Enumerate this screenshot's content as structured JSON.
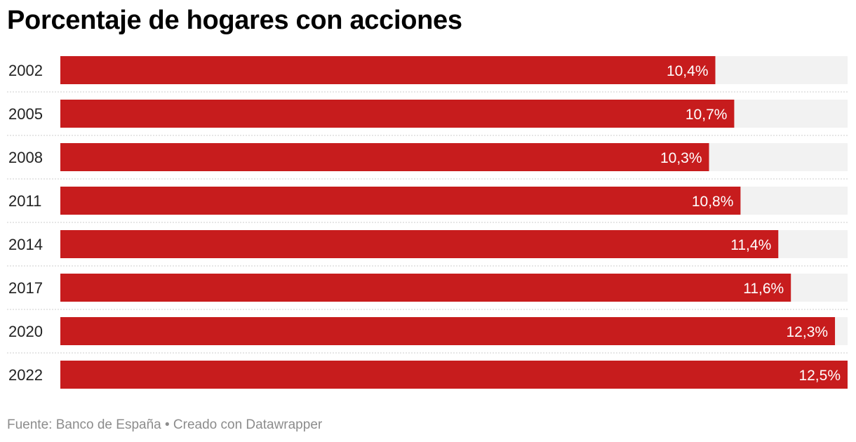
{
  "chart_data": {
    "type": "bar",
    "orientation": "horizontal",
    "title": "Porcentaje de hogares con acciones",
    "categories": [
      "2002",
      "2005",
      "2008",
      "2011",
      "2014",
      "2017",
      "2020",
      "2022"
    ],
    "values": [
      10.4,
      10.7,
      10.3,
      10.8,
      11.4,
      11.6,
      12.3,
      12.5
    ],
    "value_labels": [
      "10,4%",
      "10,7%",
      "10,3%",
      "10,8%",
      "11,4%",
      "11,6%",
      "12,3%",
      "12,5%"
    ],
    "xlim": [
      0,
      12.5
    ],
    "xlabel": "",
    "ylabel": "",
    "grid": false,
    "legend": "none"
  },
  "footer": {
    "source": "Fuente: Banco de España • Creado con Datawrapper"
  },
  "colors": {
    "bar": "#c71c1d",
    "track": "#f2f2f2",
    "separator": "#cccccc"
  }
}
